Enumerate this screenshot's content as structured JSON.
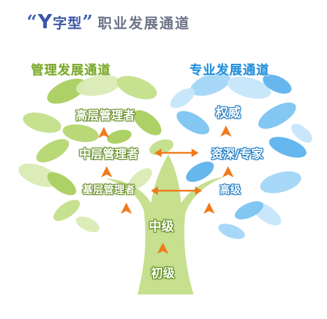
{
  "title": {
    "quote_open": "“",
    "y_letter": "Y",
    "char": "字型",
    "quote_close": "”",
    "rest": "职业发展通道"
  },
  "heading_left": "管理发展通道",
  "heading_right": "专业发展通道",
  "labels": {
    "senior_manager": "高层管理者",
    "middle_manager": "中层管理者",
    "base_manager": "基层管理者",
    "middle_level": "中级",
    "junior_level": "初级",
    "authority": "权威",
    "senior_expert": "资深/专家",
    "senior_level": "高级"
  },
  "colors": {
    "left_canopy": [
      "#a9cf5e",
      "#c3df8a",
      "#d9ebb4",
      "#b5d670"
    ],
    "right_canopy": [
      "#7cc4f2",
      "#a3d6f7",
      "#c6e6fb",
      "#5db3ec"
    ],
    "trunk": "#c6e08f",
    "arrow_up": "#f07a1b",
    "arrow_double": "#f07a1b"
  }
}
